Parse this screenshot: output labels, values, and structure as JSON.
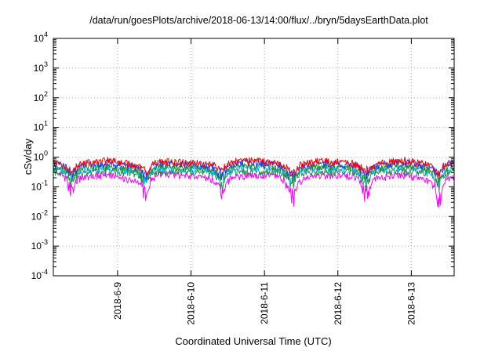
{
  "chart_data": {
    "type": "line",
    "title": "/data/run/goesPlots/archive/2018-06-13/14:00/flux/../bryn/5daysEarthData.plot",
    "xlabel": "Coordinated Universal Time (UTC)",
    "ylabel": "cSv/day",
    "yscale": "log",
    "ylim": [
      0.0001,
      10000
    ],
    "y_ticks": [
      {
        "exp": "-4",
        "value": 0.0001
      },
      {
        "exp": "-3",
        "value": 0.001
      },
      {
        "exp": "-2",
        "value": 0.01
      },
      {
        "exp": "-1",
        "value": 0.1
      },
      {
        "exp": "0",
        "value": 1
      },
      {
        "exp": "1",
        "value": 10
      },
      {
        "exp": "2",
        "value": 100
      },
      {
        "exp": "3",
        "value": 1000
      },
      {
        "exp": "4",
        "value": 10000
      }
    ],
    "y_tick_base": "10",
    "xlim": [
      "2018-06-08 03:00",
      "2018-06-13 14:00"
    ],
    "x_ticks": [
      "2018-6-9",
      "2018-6-10",
      "2018-6-11",
      "2018-6-12",
      "2018-6-13"
    ],
    "grid": true,
    "dip_times": [
      "2018-06-08 09:00",
      "2018-06-09 09:00",
      "2018-06-10 10:00",
      "2018-06-11 09:00",
      "2018-06-12 09:00",
      "2018-06-13 09:00"
    ],
    "series": [
      {
        "color": "#ff00ff",
        "dip_depth": 0.08,
        "values": [
          0.28,
          0.22,
          0.24,
          0.16,
          0.27,
          0.25,
          0.18,
          0.22,
          0.26,
          0.15,
          0.25,
          0.24,
          0.19,
          0.27,
          0.16,
          0.23
        ]
      },
      {
        "color": "#2e8b57",
        "dip_depth": 0.25,
        "values": [
          0.33,
          0.31,
          0.34,
          0.3,
          0.33,
          0.32,
          0.31,
          0.34,
          0.33,
          0.3,
          0.33,
          0.32,
          0.31,
          0.34,
          0.31,
          0.33
        ]
      },
      {
        "color": "#00bfff",
        "dip_depth": 0.3,
        "values": [
          0.42,
          0.38,
          0.44,
          0.36,
          0.43,
          0.41,
          0.37,
          0.45,
          0.42,
          0.35,
          0.43,
          0.4,
          0.38,
          0.46,
          0.37,
          0.42
        ]
      },
      {
        "color": "#228b22",
        "dip_depth": 0.3,
        "values": [
          0.47,
          0.43,
          0.49,
          0.41,
          0.48,
          0.46,
          0.42,
          0.5,
          0.47,
          0.4,
          0.48,
          0.45,
          0.43,
          0.51,
          0.42,
          0.47
        ]
      },
      {
        "color": "#1e3cff",
        "dip_depth": 0.35,
        "values": [
          0.6,
          0.52,
          0.66,
          0.48,
          0.62,
          0.58,
          0.5,
          0.68,
          0.61,
          0.47,
          0.63,
          0.57,
          0.51,
          0.7,
          0.49,
          0.6
        ]
      },
      {
        "color": "#ff0000",
        "dip_depth": 0.4,
        "values": [
          0.7,
          0.6,
          0.78,
          0.55,
          0.72,
          0.66,
          0.58,
          0.8,
          0.71,
          0.54,
          0.74,
          0.65,
          0.59,
          0.82,
          0.56,
          0.69
        ]
      }
    ]
  }
}
